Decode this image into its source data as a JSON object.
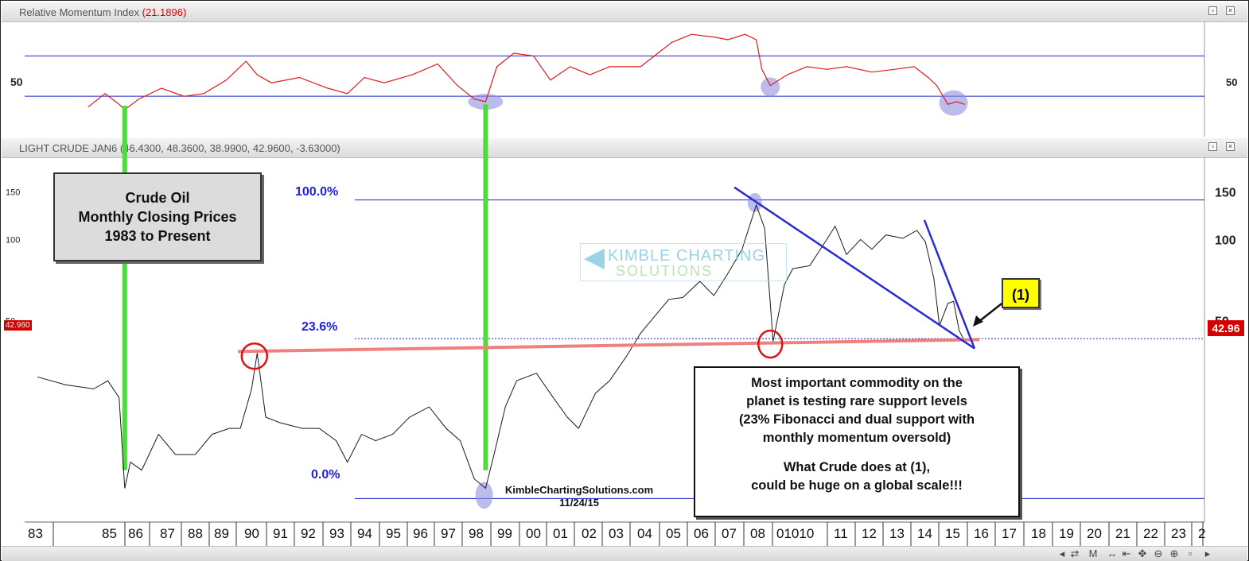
{
  "rmi_panel": {
    "title": "Relative Momentum Index",
    "value": "(21.1896)",
    "y_label_left": "50",
    "y_label_right": "50"
  },
  "price_panel": {
    "title": "LIGHT CRUDE JAN6",
    "ohlc": "(46.4300, 48.3600, 38.9900, 42.9600, -3.63000)",
    "y_ticks_left": [
      "150",
      "100",
      "50"
    ],
    "y_ticks_right": [
      "150",
      "100",
      "50"
    ],
    "last_price_left": "42.960",
    "last_price_right": "42.96"
  },
  "annotations": {
    "title_box": [
      "Crude Oil",
      "Monthly Closing Prices",
      "1983 to Present"
    ],
    "fib_100": "100.0%",
    "fib_236": "23.6%",
    "fib_0": "0.0%",
    "marker_label": "(1)",
    "source": "KimbleChartingSolutions.com",
    "date": "11/24/15",
    "watermark_line1": "KIMBLE CHARTING",
    "watermark_line2": "SOLUTIONS",
    "commentary": [
      "Most important commodity on the",
      "planet is testing rare support levels",
      "(23% Fibonacci and dual support with",
      "monthly momentum oversold)",
      "",
      "What Crude does at (1),",
      "could be huge on a global scale!!!"
    ]
  },
  "colors": {
    "price_line": "#1a1a1a",
    "rmi_line": "#e21a1a",
    "level_line": "#1f1fc8",
    "trend_line": "#2b2bd6",
    "support_line": "#f08080",
    "green_bar": "#4ddc3c",
    "highlight": "#8f8fe0",
    "label_box": "#dcdcdc",
    "marker_box": "#ffff00",
    "last_price_tag": "#d40000"
  },
  "chart_data": [
    {
      "type": "line",
      "title": "Relative Momentum Index",
      "series": [
        {
          "name": "Relative Momentum Index",
          "x": [
            1984.8,
            1985.4,
            1985.9,
            1986.1,
            1986.6,
            1987.4,
            1988.2,
            1988.9,
            1989.7,
            1990.4,
            1990.8,
            1991.3,
            1992.3,
            1993.3,
            1994.0,
            1994.6,
            1995.3,
            1996.3,
            1997.2,
            1997.9,
            1998.5,
            1998.9,
            1999.3,
            1999.9,
            2000.6,
            2001.2,
            2001.9,
            2002.6,
            2003.3,
            2004.4,
            2005.5,
            2006.2,
            2007.0,
            2007.5,
            2008.1,
            2008.5,
            2008.7,
            2009.0,
            2009.6,
            2010.3,
            2011.0,
            2011.7,
            2012.6,
            2013.4,
            2014.1,
            2014.6,
            2014.9,
            2015.3,
            2015.6,
            2015.9
          ],
          "values": [
            32,
            42,
            34,
            30,
            38,
            46,
            40,
            42,
            52,
            66,
            56,
            50,
            54,
            46,
            42,
            54,
            50,
            56,
            64,
            48,
            38,
            36,
            62,
            72,
            70,
            52,
            62,
            56,
            62,
            62,
            80,
            86,
            84,
            82,
            86,
            82,
            60,
            48,
            56,
            62,
            60,
            62,
            58,
            60,
            62,
            54,
            48,
            34,
            36,
            34
          ]
        }
      ],
      "levels": [
        70,
        40
      ],
      "ylabel": ""
    },
    {
      "type": "line",
      "title": "LIGHT CRUDE JAN6",
      "x_ticks": [
        "83",
        "85",
        "86",
        "87",
        "88",
        "89",
        "90",
        "91",
        "92",
        "93",
        "94",
        "95",
        "96",
        "97",
        "98",
        "99",
        "00",
        "01",
        "02",
        "03",
        "04",
        "05",
        "06",
        "07",
        "08",
        "01010",
        "11",
        "12",
        "13",
        "14",
        "15",
        "16",
        "17",
        "18",
        "19",
        "20",
        "21",
        "22",
        "23",
        "2"
      ],
      "y_log": true,
      "series": [
        {
          "name": "LIGHT CRUDE JAN6",
          "x": [
            1983.0,
            1984.0,
            1985.0,
            1985.5,
            1985.9,
            1986.1,
            1986.3,
            1986.7,
            1987.3,
            1987.9,
            1988.6,
            1989.2,
            1989.8,
            1990.2,
            1990.6,
            1990.8,
            1991.1,
            1991.6,
            1992.4,
            1993.0,
            1993.6,
            1994.0,
            1994.5,
            1995.0,
            1995.6,
            1996.2,
            1996.9,
            1997.5,
            1998.0,
            1998.5,
            1998.9,
            1999.2,
            1999.6,
            2000.0,
            2000.7,
            2001.3,
            2001.8,
            2002.2,
            2002.8,
            2003.3,
            2003.9,
            2004.4,
            2004.9,
            2005.4,
            2005.9,
            2006.5,
            2007.0,
            2007.5,
            2008.0,
            2008.5,
            2008.8,
            2009.1,
            2009.5,
            2009.8,
            2010.4,
            2011.0,
            2011.3,
            2011.7,
            2012.2,
            2012.6,
            2013.1,
            2013.7,
            2014.2,
            2014.5,
            2014.8,
            2015.0,
            2015.3,
            2015.5,
            2015.7,
            2015.9
          ],
          "values": [
            31,
            29,
            28,
            30,
            26,
            12,
            15,
            14,
            19,
            16,
            16,
            19,
            20,
            20,
            28,
            38,
            22,
            21,
            20,
            20,
            18,
            15,
            19,
            18,
            19,
            22,
            24,
            20,
            18,
            13,
            12,
            16,
            24,
            30,
            32,
            26,
            22,
            20,
            27,
            30,
            37,
            45,
            52,
            60,
            61,
            70,
            62,
            75,
            92,
            134,
            110,
            42,
            68,
            78,
            80,
            100,
            112,
            88,
            100,
            92,
            104,
            101,
            108,
            98,
            72,
            48,
            58,
            59,
            46,
            42
          ]
        }
      ],
      "fib_levels": [
        {
          "label": "100.0%",
          "value": 140
        },
        {
          "label": "23.6%",
          "value": 42
        },
        {
          "label": "0.0%",
          "value": 11
        }
      ]
    }
  ]
}
